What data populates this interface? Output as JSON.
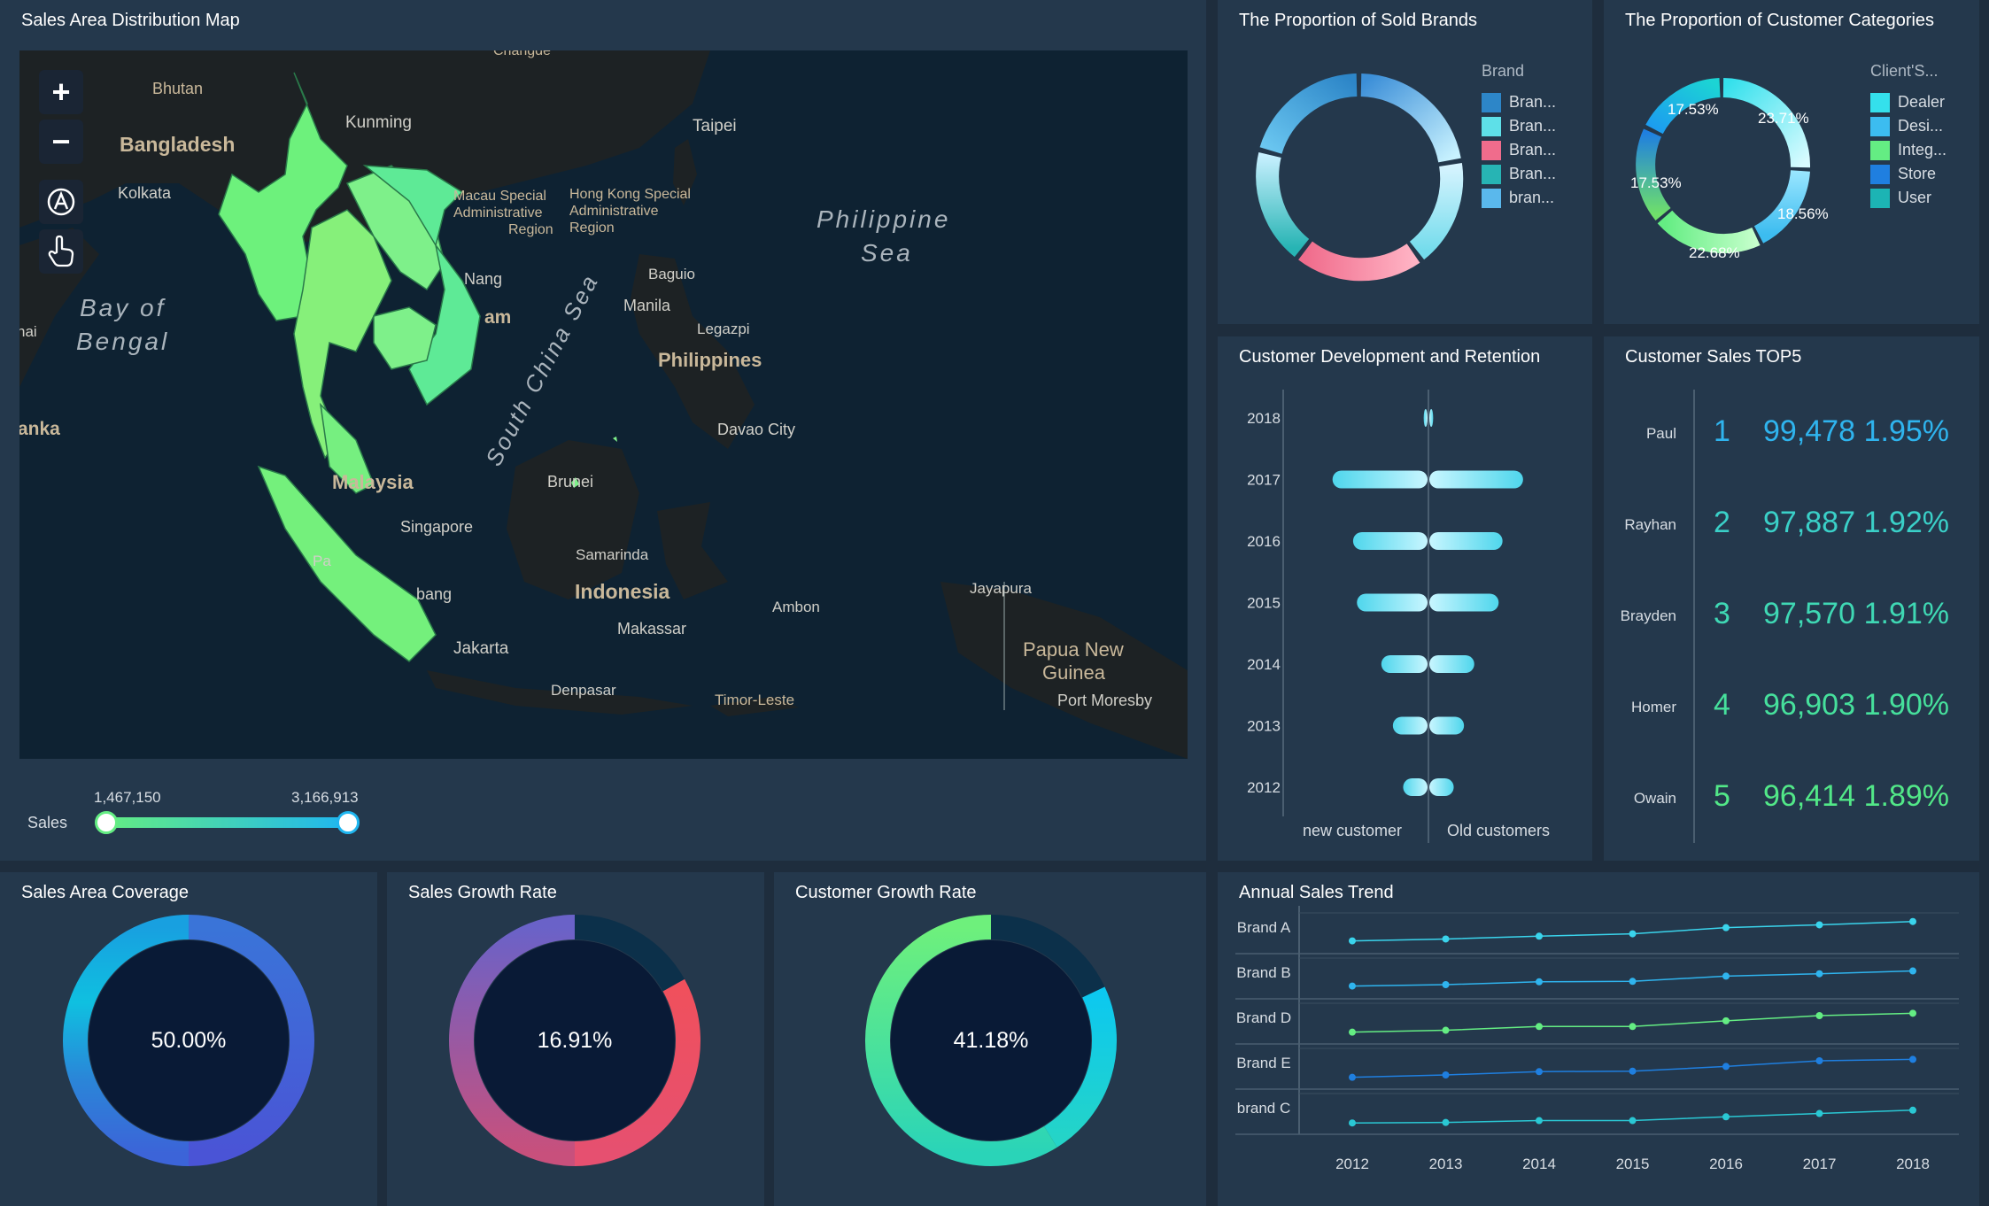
{
  "colors": {
    "bg": "#1e2d3d",
    "panel": "#24384c",
    "cyan": "#34cbe8",
    "green": "#64ed83",
    "pink": "#f06c8c",
    "blue": "#1f7fe0"
  },
  "map": {
    "title": "Sales Area Distribution Map",
    "labels": {
      "changde": "Changde",
      "bhutan": "Bhutan",
      "kunming": "Kunming",
      "taipei": "Taipei",
      "bangladesh": "Bangladesh",
      "kolkata": "Kolkata",
      "macau": "Macau Special",
      "macau2": "Administrative",
      "macau3": "Region",
      "hk": "Hong Kong Special",
      "hk2": "Administrative",
      "hk3": "Region",
      "philsea1": "Philippine",
      "philsea2": "Sea",
      "baguio": "Baguio",
      "nang": "Nang",
      "manila": "Manila",
      "bay1": "Bay of",
      "bay2": "Bengal",
      "nai": "nai",
      "am": "am",
      "legazpi": "Legazpi",
      "philippines": "Philippines",
      "scs": "South China Sea",
      "anka": "anka",
      "davao": "Davao City",
      "malaysia": "Malaysia",
      "brunei": "Brunei",
      "singapore": "Singapore",
      "samarinda": "Samarinda",
      "pa": "Pa",
      "bang": "bang",
      "indonesia": "Indonesia",
      "jayapura": "Jayapura",
      "ambon": "Ambon",
      "makassar": "Makassar",
      "jakarta": "Jakarta",
      "png1": "Papua New",
      "png2": "Guinea",
      "denpasar": "Denpasar",
      "timor": "Timor-Leste",
      "moresby": "Port Moresby"
    },
    "tools": {
      "zoom_in": "+",
      "zoom_out": "−"
    },
    "legend": {
      "label": "Sales",
      "min": "1,467,150",
      "max": "3,166,913"
    }
  },
  "sold_brands": {
    "title": "The Proportion of Sold Brands",
    "legend_title": "Brand",
    "items": [
      {
        "label": "Bran...",
        "color": "#2d86c8"
      },
      {
        "label": "Bran...",
        "color": "#5ee0e8"
      },
      {
        "label": "Bran...",
        "color": "#f06c8c"
      },
      {
        "label": "Bran...",
        "color": "#27b4b4"
      },
      {
        "label": "bran...",
        "color": "#5ab8ec"
      }
    ]
  },
  "customer_categories": {
    "title": "The Proportion of Customer Categories",
    "legend_title": "Client'S...",
    "items": [
      {
        "label": "Dealer",
        "color": "#34e0ec",
        "pct": "23.71%"
      },
      {
        "label": "Desi...",
        "color": "#3cbcf0",
        "pct": "18.56%"
      },
      {
        "label": "Integ...",
        "color": "#64ed83",
        "pct": "22.68%"
      },
      {
        "label": "Store",
        "color": "#1f7fe0",
        "pct": "17.53%"
      },
      {
        "label": "User",
        "color": "#1cb4b4",
        "pct": "17.53%"
      }
    ]
  },
  "retention": {
    "title": "Customer Development and Retention",
    "years": [
      "2018",
      "2017",
      "2016",
      "2015",
      "2014",
      "2013",
      "2012"
    ],
    "new_label": "new customer",
    "old_label": "Old customers"
  },
  "top5": {
    "title": "Customer Sales TOP5",
    "rows": [
      {
        "name": "Paul",
        "rank": "1",
        "value": "99,478",
        "pct": "1.95%",
        "color": "#2fb4ee"
      },
      {
        "name": "Rayhan",
        "rank": "2",
        "value": "97,887",
        "pct": "1.92%",
        "color": "#3ad0c8"
      },
      {
        "name": "Brayden",
        "rank": "3",
        "value": "97,570",
        "pct": "1.91%",
        "color": "#3fd8b4"
      },
      {
        "name": "Homer",
        "rank": "4",
        "value": "96,903",
        "pct": "1.90%",
        "color": "#46e09c"
      },
      {
        "name": "Owain",
        "rank": "5",
        "value": "96,414",
        "pct": "1.89%",
        "color": "#52e888"
      }
    ]
  },
  "coverage": {
    "title": "Sales Area Coverage",
    "value": "50.00%",
    "fraction": 0.5
  },
  "sales_growth": {
    "title": "Sales Growth Rate",
    "value": "16.91%",
    "fraction": 0.1691
  },
  "customer_growth": {
    "title": "Customer Growth Rate",
    "value": "41.18%",
    "fraction": 0.4118
  },
  "trend": {
    "title": "Annual Sales Trend",
    "years": [
      "2012",
      "2013",
      "2014",
      "2015",
      "2016",
      "2017",
      "2018"
    ],
    "brands": [
      "Brand A",
      "Brand B",
      "Brand D",
      "Brand E",
      "brand C"
    ]
  },
  "chart_data": [
    {
      "type": "pie",
      "title": "The Proportion of Sold Brands",
      "legend_title": "Brand",
      "series": [
        {
          "name": "Bran...",
          "value": 21
        },
        {
          "name": "Bran...",
          "value": 19
        },
        {
          "name": "Bran...",
          "value": 20
        },
        {
          "name": "Bran...",
          "value": 20
        },
        {
          "name": "bran...",
          "value": 20
        }
      ]
    },
    {
      "type": "pie",
      "title": "The Proportion of Customer Categories",
      "legend_title": "Client'S...",
      "series": [
        {
          "name": "Dealer",
          "value": 23.71
        },
        {
          "name": "Desi...",
          "value": 18.56
        },
        {
          "name": "Integ...",
          "value": 22.68
        },
        {
          "name": "Store",
          "value": 17.53
        },
        {
          "name": "User",
          "value": 17.53
        }
      ]
    },
    {
      "type": "bar",
      "title": "Customer Development and Retention",
      "categories": [
        "2018",
        "2017",
        "2016",
        "2015",
        "2014",
        "2013",
        "2012"
      ],
      "series": [
        {
          "name": "new customer",
          "values": [
            3,
            74,
            58,
            55,
            36,
            27,
            19
          ]
        },
        {
          "name": "Old customers",
          "values": [
            3,
            73,
            57,
            54,
            35,
            27,
            19
          ]
        }
      ]
    },
    {
      "type": "table",
      "title": "Customer Sales TOP5",
      "rows": [
        [
          "Paul",
          "1",
          "99,478",
          "1.95%"
        ],
        [
          "Rayhan",
          "2",
          "97,887",
          "1.92%"
        ],
        [
          "Brayden",
          "3",
          "97,570",
          "1.91%"
        ],
        [
          "Homer",
          "4",
          "96,903",
          "1.90%"
        ],
        [
          "Owain",
          "5",
          "96,414",
          "1.89%"
        ]
      ]
    },
    {
      "type": "pie",
      "title": "Sales Area Coverage",
      "values": [
        50.0,
        50.0
      ]
    },
    {
      "type": "pie",
      "title": "Sales Growth Rate",
      "values": [
        16.91,
        83.09
      ]
    },
    {
      "type": "pie",
      "title": "Customer Growth Rate",
      "values": [
        41.18,
        58.82
      ]
    },
    {
      "type": "line",
      "title": "Annual Sales Trend",
      "x": [
        "2012",
        "2013",
        "2014",
        "2015",
        "2016",
        "2017",
        "2018"
      ],
      "series": [
        {
          "name": "Brand A",
          "values": [
            12,
            16,
            22,
            27,
            40,
            46,
            53
          ]
        },
        {
          "name": "Brand B",
          "values": [
            12,
            15,
            21,
            22,
            33,
            38,
            44
          ]
        },
        {
          "name": "Brand D",
          "values": [
            10,
            14,
            22,
            22,
            34,
            45,
            50
          ]
        },
        {
          "name": "Brand E",
          "values": [
            10,
            15,
            22,
            23,
            33,
            45,
            48
          ]
        },
        {
          "name": "brand C",
          "values": [
            9,
            10,
            14,
            14,
            22,
            29,
            36
          ]
        }
      ]
    }
  ]
}
